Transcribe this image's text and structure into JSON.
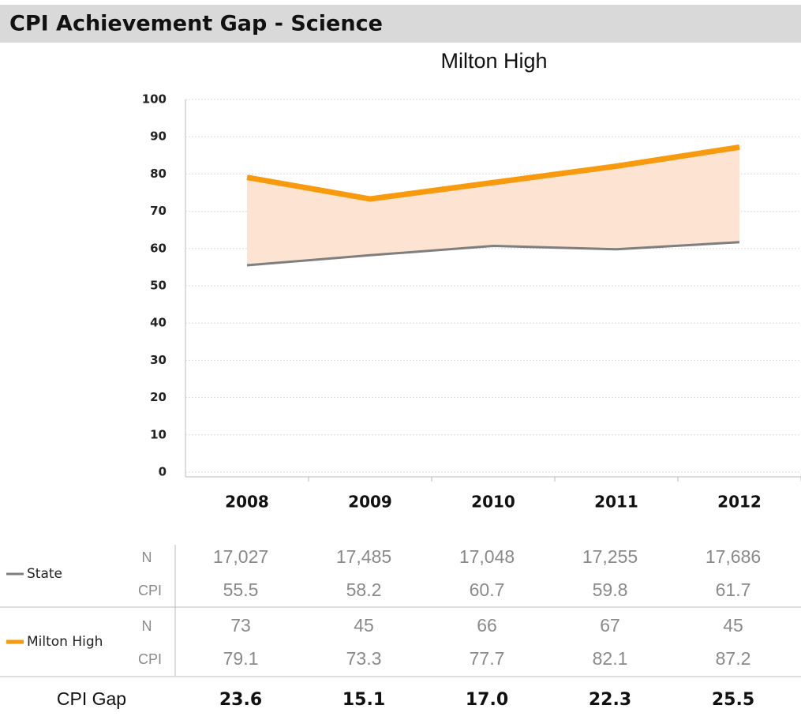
{
  "header": {
    "title": "CPI Achievement Gap - Science"
  },
  "chart_data": {
    "type": "line",
    "title": "Milton High",
    "categories": [
      "2008",
      "2009",
      "2010",
      "2011",
      "2012"
    ],
    "series": [
      {
        "name": "State",
        "color": "#7f7f7f",
        "values": [
          55.5,
          58.2,
          60.7,
          59.8,
          61.7
        ]
      },
      {
        "name": "Milton High",
        "color": "#f79a0e",
        "values": [
          79.1,
          73.3,
          77.7,
          82.1,
          87.2
        ]
      }
    ],
    "fill_between_color": "#fde4d2",
    "ylim": [
      0,
      100
    ],
    "yticks": [
      0,
      10,
      20,
      30,
      40,
      50,
      60,
      70,
      80,
      90,
      100
    ],
    "grid": true,
    "table": {
      "rows": [
        {
          "n_label": "N",
          "cpi_label": "CPI",
          "n": [
            "17,027",
            "17,485",
            "17,048",
            "17,255",
            "17,686"
          ]
        },
        {
          "n_label": "N",
          "cpi_label": "CPI",
          "n": [
            "73",
            "45",
            "66",
            "67",
            "45"
          ]
        }
      ],
      "gap_label": "CPI Gap",
      "gap": [
        "23.6",
        "15.1",
        "17.0",
        "22.3",
        "25.5"
      ]
    }
  }
}
